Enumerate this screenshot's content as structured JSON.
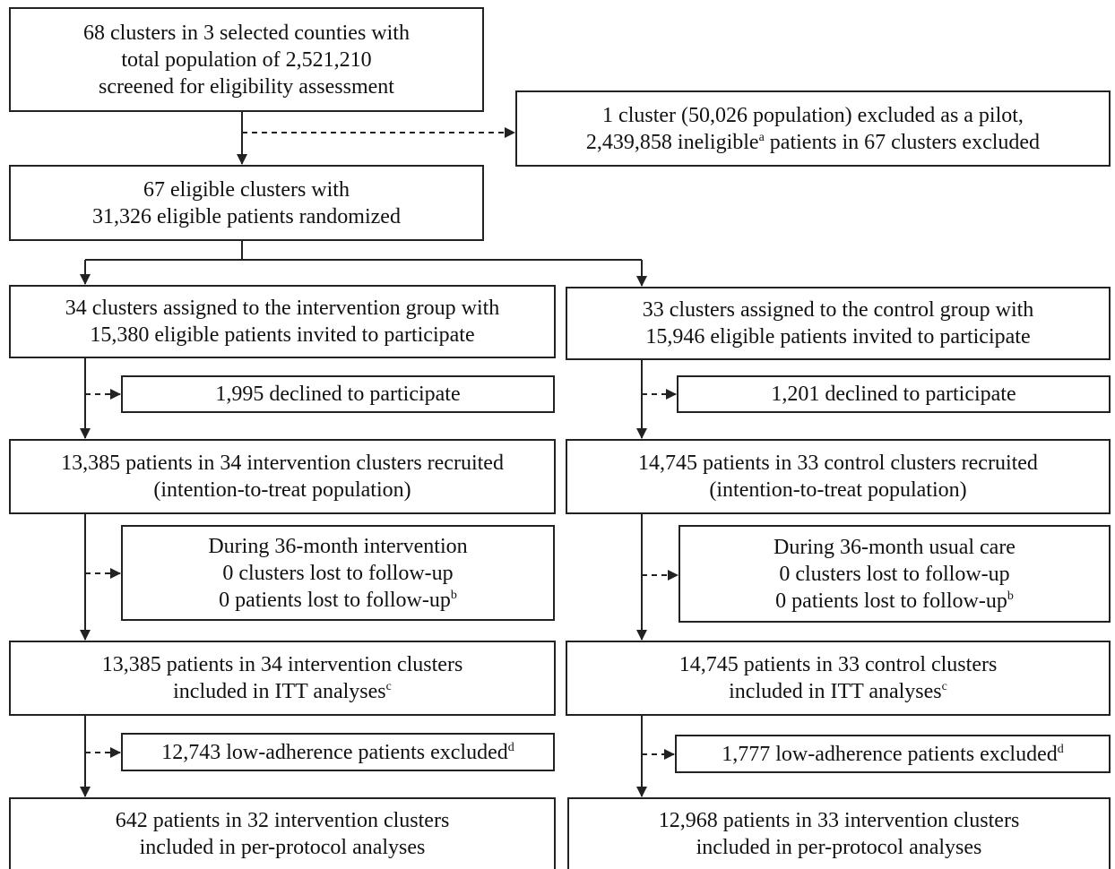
{
  "boxes": {
    "screened": {
      "lines": [
        "68 clusters in 3 selected counties with",
        "total population of 2,521,210",
        "screened for eligibility assessment"
      ]
    },
    "excluded_pilot": {
      "line1": "1 cluster (50,026 population) excluded as a pilot,",
      "line2_pre": "2,439,858 ineligible",
      "line2_sup": "a",
      "line2_post": " patients in 67 clusters excluded"
    },
    "randomized": {
      "lines": [
        "67 eligible clusters with",
        "31,326 eligible patients randomized"
      ]
    },
    "int_assigned": {
      "lines": [
        "34 clusters assigned to the intervention group with",
        "15,380 eligible patients invited to participate"
      ]
    },
    "ctl_assigned": {
      "lines": [
        "33 clusters assigned to the control group with",
        "15,946 eligible patients invited to participate"
      ]
    },
    "int_declined": {
      "text": "1,995 declined to participate"
    },
    "ctl_declined": {
      "text": "1,201 declined to participate"
    },
    "int_recruited": {
      "lines": [
        "13,385 patients in 34 intervention clusters recruited",
        "(intention-to-treat population)"
      ]
    },
    "ctl_recruited": {
      "lines": [
        "14,745 patients in 33 control clusters recruited",
        "(intention-to-treat population)"
      ]
    },
    "int_followup": {
      "line1": "During 36-month intervention",
      "line2": "0 clusters lost to follow-up",
      "line3_pre": "0 patients lost to follow-up",
      "line3_sup": "b"
    },
    "ctl_followup": {
      "line1": "During 36-month usual care",
      "line2": "0 clusters lost to follow-up",
      "line3_pre": "0 patients lost to follow-up",
      "line3_sup": "b"
    },
    "int_itt": {
      "line1": "13,385 patients in 34 intervention clusters",
      "line2_pre": "included in ITT analyses",
      "line2_sup": "c"
    },
    "ctl_itt": {
      "line1": "14,745 patients in 33 control clusters",
      "line2_pre": "included in ITT analyses",
      "line2_sup": "c"
    },
    "int_lowadh": {
      "pre": "12,743 low-adherence patients excluded",
      "sup": "d"
    },
    "ctl_lowadh": {
      "pre": "1,777 low-adherence patients excluded",
      "sup": "d"
    },
    "int_pp": {
      "lines": [
        "642 patients in 32 intervention clusters",
        "included in per-protocol analyses"
      ]
    },
    "ctl_pp": {
      "lines": [
        "12,968 patients in 33 intervention clusters",
        "included in per-protocol analyses"
      ]
    }
  },
  "colors": {
    "line": "#222222",
    "background": "#ffffff"
  }
}
